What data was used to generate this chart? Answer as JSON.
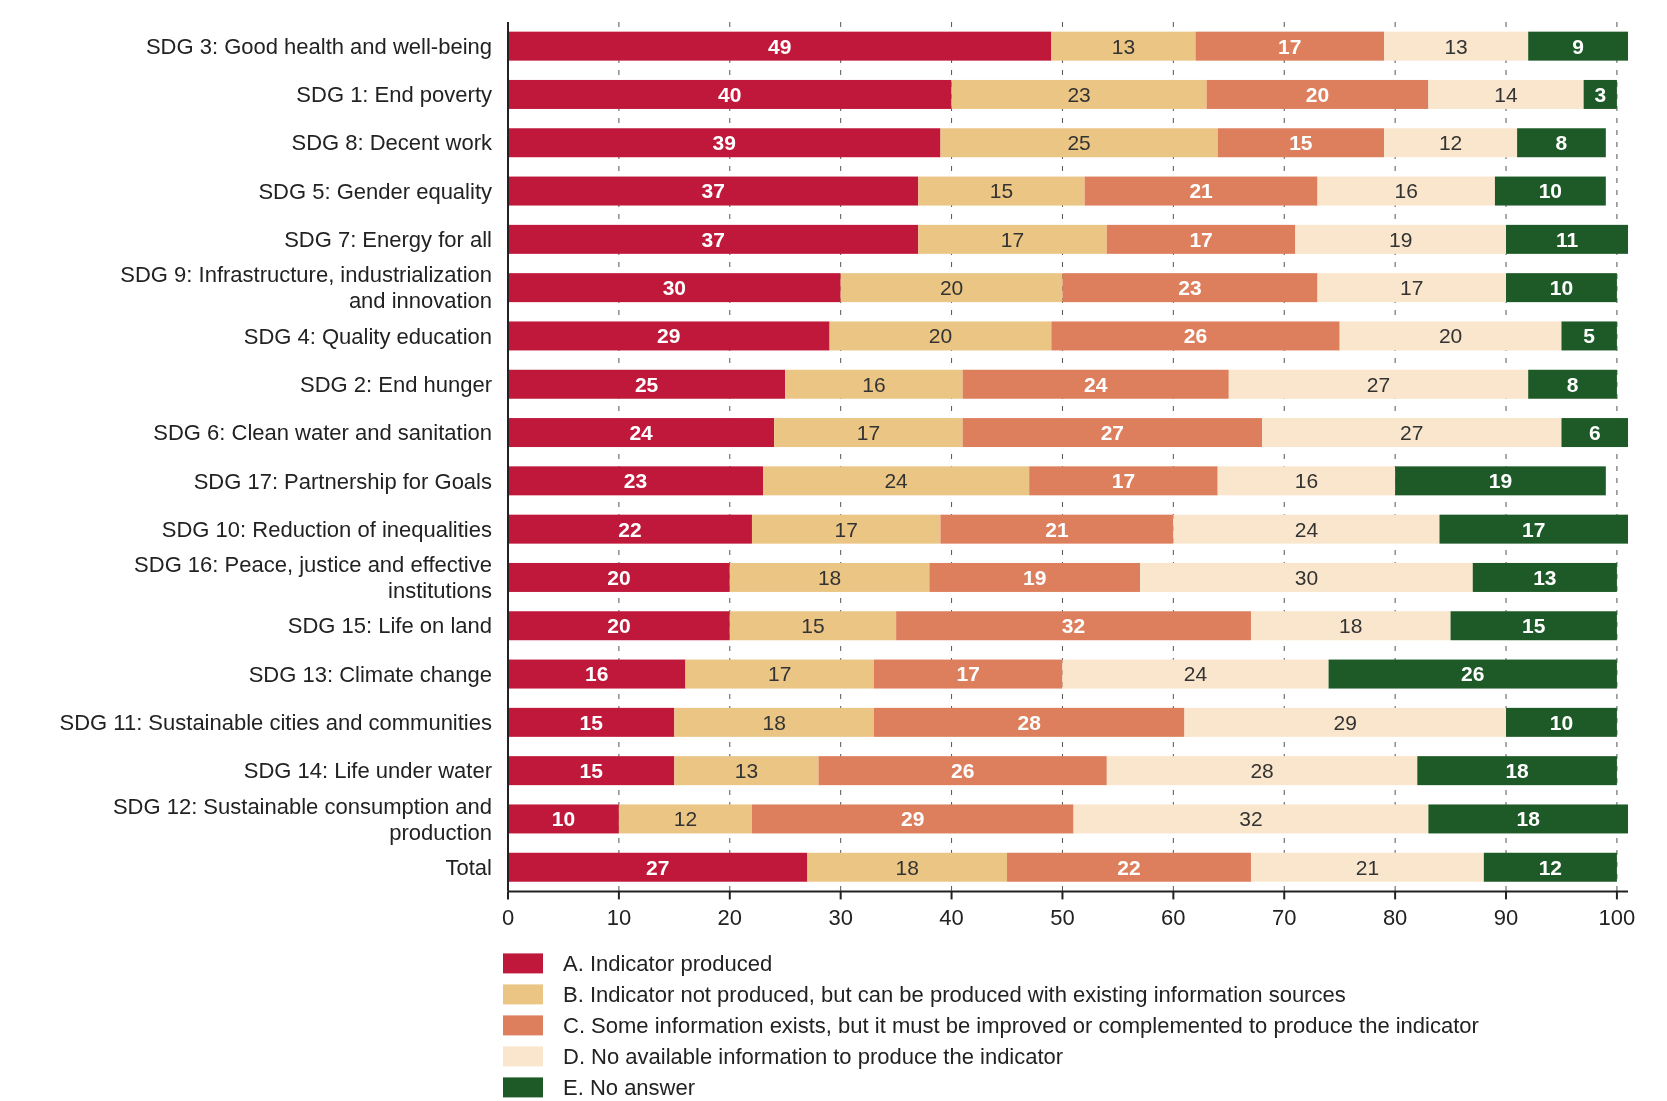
{
  "chart_data": {
    "type": "bar",
    "orientation": "horizontal",
    "stacked": true,
    "data_labels": true,
    "grid": "x",
    "legend": "bottom",
    "categories": [
      "SDG 3: Good health and well-being",
      "SDG 1: End poverty",
      "SDG 8: Decent work",
      "SDG 5: Gender equality",
      "SDG 7: Energy for all",
      "SDG 9: Infrastructure, industrialization and innovation",
      "SDG 4: Quality education",
      "SDG 2: End hunger",
      "SDG 6: Clean water and sanitation",
      "SDG 17: Partnership for Goals",
      "SDG 10: Reduction of inequalities",
      "SDG 16: Peace, justice and effective institutions",
      "SDG 15: Life on land",
      "SDG 13: Climate change",
      "SDG 11: Sustainable cities and communities",
      "SDG 14: Life under water",
      "SDG 12: Sustainable consumption and production",
      "Total"
    ],
    "series": [
      {
        "name": "A. Indicator produced",
        "color": "#c0183a",
        "values": [
          49,
          40,
          39,
          37,
          37,
          30,
          29,
          25,
          24,
          23,
          22,
          20,
          20,
          16,
          15,
          15,
          10,
          27
        ]
      },
      {
        "name": "B. Indicator not produced, but can be produced with existing information sources",
        "color": "#ebc584",
        "values": [
          13,
          23,
          25,
          15,
          17,
          20,
          20,
          16,
          17,
          24,
          17,
          18,
          15,
          17,
          18,
          13,
          12,
          18
        ]
      },
      {
        "name": "C. Some information exists, but it must be improved or complemented to produce the indicator",
        "color": "#dd7f5d",
        "values": [
          17,
          20,
          15,
          21,
          17,
          23,
          26,
          24,
          27,
          17,
          21,
          19,
          32,
          17,
          28,
          26,
          29,
          22
        ]
      },
      {
        "name": "D. No available information to produce the indicator",
        "color": "#f9e6cc",
        "values": [
          13,
          14,
          12,
          16,
          19,
          17,
          20,
          27,
          27,
          16,
          24,
          30,
          18,
          24,
          29,
          28,
          32,
          21
        ]
      },
      {
        "name": "E. No answer",
        "color": "#1e5a27",
        "values": [
          9,
          3,
          8,
          10,
          11,
          10,
          5,
          8,
          6,
          19,
          17,
          13,
          15,
          26,
          10,
          18,
          18,
          12
        ]
      }
    ],
    "xlim": [
      0,
      101
    ],
    "xticks": [
      0,
      10,
      20,
      30,
      40,
      50,
      60,
      70,
      80,
      90,
      100
    ]
  }
}
